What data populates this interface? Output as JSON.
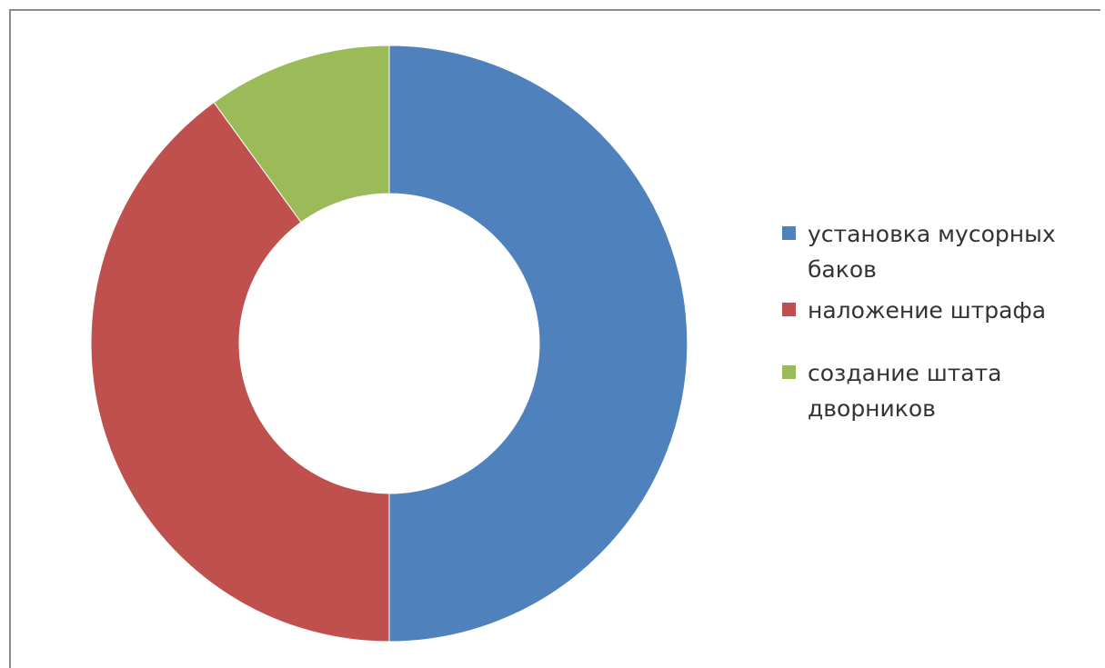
{
  "chart_data": {
    "type": "pie",
    "style": "donut",
    "title": "",
    "categories": [
      "установка  мусорных баков",
      "наложение штрафа",
      "создание штата дворников"
    ],
    "values": [
      50,
      40,
      10
    ],
    "colors": [
      "#4f81bd",
      "#c0504d",
      "#9bbb59"
    ],
    "legend_position": "right"
  },
  "legend": {
    "items": [
      {
        "label": "установка  мусорных баков",
        "color": "#4f81bd"
      },
      {
        "label": "наложение штрафа",
        "color": "#c0504d"
      },
      {
        "label": "создание штата дворников",
        "color": "#9bbb59"
      }
    ]
  }
}
